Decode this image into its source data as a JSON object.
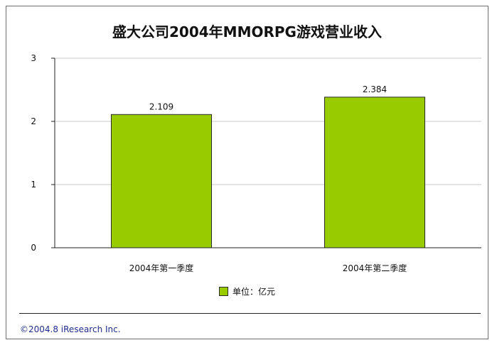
{
  "chart_data": {
    "type": "bar",
    "title": "盛大公司2004年MMORPG游戏营业收入",
    "categories": [
      "2004年第一季度",
      "2004年第二季度"
    ],
    "series": [
      {
        "name": "单位：亿元",
        "values": [
          2.109,
          2.384
        ]
      }
    ],
    "data_labels": [
      "2.109",
      "2.384"
    ],
    "y_ticks": [
      "0",
      "1",
      "2",
      "3"
    ],
    "ylim": [
      0,
      3
    ],
    "grid": true,
    "legend_position": "bottom",
    "bar_color": "#99cc00"
  },
  "footer": {
    "copyright": "©2004.8 iResearch Inc."
  }
}
